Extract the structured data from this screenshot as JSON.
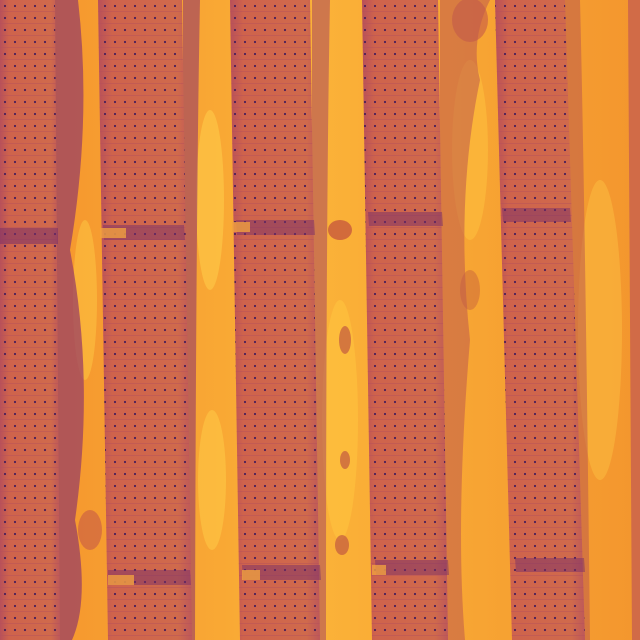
{
  "image": {
    "kind": "thermal aerial photograph",
    "palette": {
      "hot_ground": "#f7a52e",
      "hot_ground_light": "#ffd04a",
      "warm_ground": "#e8782a",
      "panel_base": "#c65a4a",
      "panel_light": "#d8684a",
      "panel_dark": "#9a3f5a",
      "shadow": "#8d3a6a",
      "cell_dot": "#4a1f5a"
    }
  }
}
